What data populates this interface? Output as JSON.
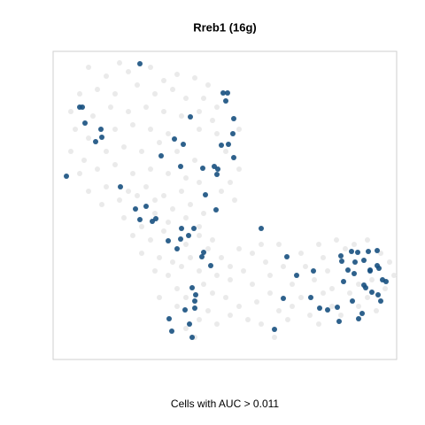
{
  "chart_data": {
    "type": "scatter",
    "title": "Rreb1 (16g)",
    "x_label": "Cells with AUC > 0.011",
    "xlim": [
      0,
      388
    ],
    "ylim": [
      0,
      348
    ],
    "series": [
      {
        "color": "#e8e8e8",
        "x": [
          40,
          60,
          75,
          85,
          110,
          125,
          140,
          160,
          175,
          30,
          50,
          70,
          95,
          115,
          135,
          150,
          170,
          185,
          20,
          45,
          65,
          85,
          105,
          125,
          145,
          165,
          180,
          25,
          40,
          70,
          90,
          110,
          130,
          165,
          185,
          210,
          20,
          35,
          60,
          80,
          100,
          120,
          140,
          160,
          195,
          210,
          30,
          50,
          70,
          90,
          110,
          130,
          150,
          165,
          200,
          40,
          60,
          85,
          105,
          125,
          145,
          190,
          205,
          55,
          75,
          95,
          115,
          135,
          155,
          170,
          80,
          100,
          115,
          130,
          150,
          165,
          90,
          110,
          125,
          150,
          165,
          180,
          100,
          120,
          135,
          155,
          175,
          190,
          115,
          130,
          145,
          165,
          185,
          200,
          140,
          150,
          170,
          180,
          200,
          215,
          225,
          240,
          245,
          255,
          260,
          270,
          280,
          285,
          295,
          300,
          305,
          310,
          315,
          320,
          330,
          340,
          345,
          355,
          360,
          370,
          380,
          385,
          195,
          210,
          230,
          245,
          255,
          265,
          270,
          280,
          290,
          300,
          305,
          315,
          325,
          335,
          345,
          355,
          365,
          375,
          150,
          165,
          175,
          185,
          200,
          220,
          235,
          250,
          140,
          160,
          120,
          225,
          210,
          235
        ],
        "y": [
          330,
          320,
          335,
          325,
          330,
          315,
          322,
          318,
          310,
          300,
          305,
          300,
          310,
          300,
          305,
          295,
          295,
          285,
          280,
          275,
          285,
          280,
          285,
          280,
          275,
          280,
          270,
          260,
          250,
          260,
          265,
          260,
          255,
          260,
          255,
          260,
          235,
          225,
          235,
          240,
          235,
          245,
          235,
          225,
          235,
          215,
          210,
          215,
          220,
          210,
          215,
          210,
          205,
          200,
          200,
          190,
          195,
          190,
          195,
          185,
          190,
          190,
          180,
          175,
          180,
          185,
          180,
          170,
          175,
          165,
          160,
          150,
          165,
          155,
          160,
          150,
          140,
          135,
          145,
          130,
          140,
          135,
          120,
          115,
          110,
          115,
          125,
          115,
          100,
          95,
          105,
          100,
          95,
          105,
          80,
          70,
          85,
          75,
          90,
          100,
          85,
          110,
          95,
          130,
          105,
          85,
          120,
          105,
          90,
          130,
          115,
          100,
          80,
          135,
          125,
          130,
          85,
          135,
          90,
          120,
          110,
          95,
          70,
          60,
          65,
          75,
          55,
          45,
          60,
          70,
          50,
          40,
          75,
          60,
          50,
          75,
          60,
          70,
          55,
          80,
          35,
          45,
          55,
          40,
          50,
          45,
          40,
          25,
          60,
          25,
          70,
          120,
          125,
          130
        ]
      },
      {
        "color": "#17507f",
        "x": [
          98,
          30,
          33,
          36,
          54,
          55,
          48,
          15,
          192,
          197,
          195,
          204,
          155,
          203,
          198,
          137,
          147,
          190,
          122,
          204,
          144,
          169,
          182,
          186,
          185,
          76,
          172,
          93,
          105,
          116,
          184,
          98,
          112,
          145,
          159,
          153,
          130,
          144,
          140,
          170,
          168,
          178,
          235,
          264,
          275,
          294,
          260,
          250,
          157,
          161,
          160,
          149,
          160,
          131,
          154,
          134,
          157,
          291,
          301,
          310,
          321,
          325,
          326,
          337,
          344,
          356,
          366,
          341,
          351,
          333,
          340,
          358,
          368,
          351,
          353,
          360,
          372,
          376,
          349,
          345,
          328,
          366,
          367,
          370,
          323,
          338,
          358
        ],
        "y": [
          334,
          285,
          285,
          267,
          260,
          251,
          246,
          207,
          301,
          301,
          292,
          272,
          274,
          255,
          243,
          249,
          243,
          242,
          230,
          228,
          218,
          216,
          218,
          215,
          209,
          195,
          186,
          170,
          173,
          159,
          169,
          158,
          156,
          148,
          148,
          140,
          134,
          136,
          125,
          121,
          116,
          106,
          148,
          116,
          95,
          100,
          69,
          34,
          81,
          73,
          66,
          56,
          58,
          46,
          40,
          32,
          25,
          70,
          58,
          56,
          59,
          117,
          111,
          122,
          121,
          122,
          123,
          110,
          112,
          101,
          97,
          101,
          103,
          84,
          81,
          76,
          90,
          88,
          52,
          46,
          88,
          106,
          73,
          66,
          43,
          66,
          100
        ]
      }
    ]
  }
}
